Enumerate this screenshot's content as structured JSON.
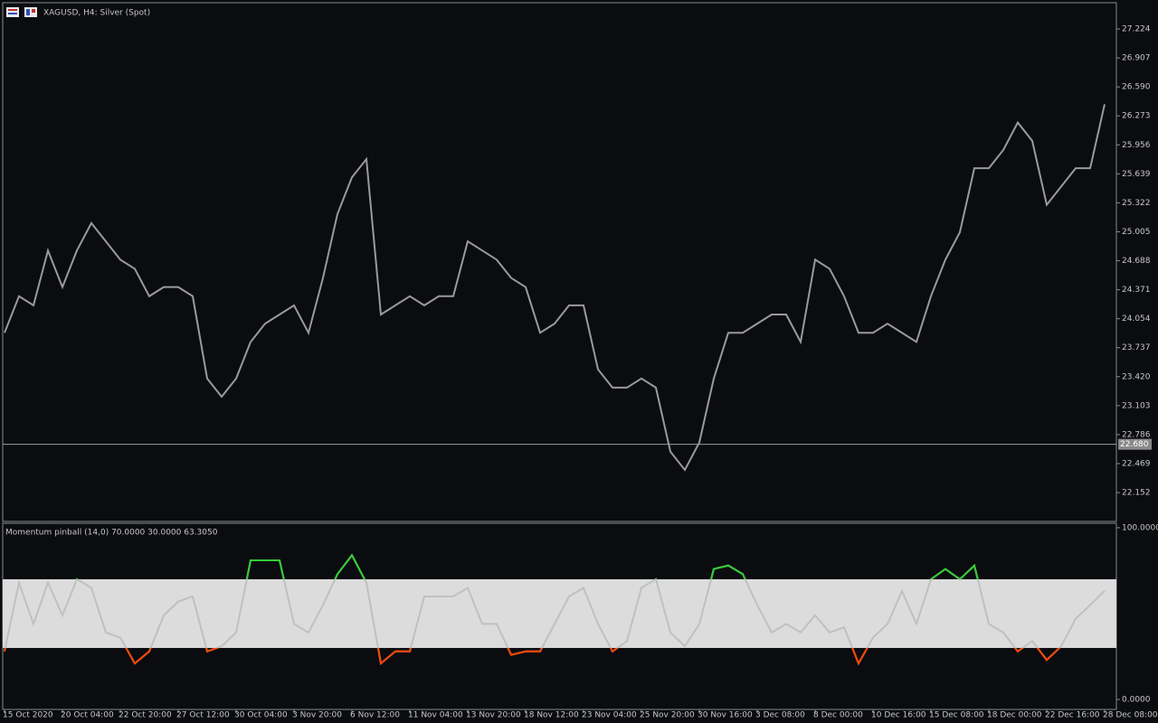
{
  "chart_data": [
    {
      "type": "line",
      "title": "XAGUSD, H4:  Silver (Spot)",
      "categories": [
        "15 Oct 2020",
        null,
        null,
        null,
        "20 Oct 04:00",
        null,
        null,
        null,
        "22 Oct 20:00",
        null,
        null,
        null,
        "27 Oct 12:00",
        null,
        null,
        null,
        "30 Oct 04:00",
        null,
        null,
        null,
        "3 Nov 20:00",
        null,
        null,
        null,
        "6 Nov 12:00",
        null,
        null,
        null,
        "11 Nov 04:00",
        null,
        null,
        null,
        "13 Nov 20:00",
        null,
        null,
        null,
        "18 Nov 12:00",
        null,
        null,
        null,
        "23 Nov 04:00",
        null,
        null,
        null,
        "25 Nov 20:00",
        null,
        null,
        null,
        "30 Nov 16:00",
        null,
        null,
        null,
        "3 Dec 08:00",
        null,
        null,
        null,
        "8 Dec 00:00",
        null,
        null,
        null,
        "10 Dec 16:00",
        null,
        null,
        null,
        "15 Dec 08:00",
        null,
        null,
        null,
        "18 Dec 00:00",
        null,
        null,
        null,
        "22 Dec 16:00",
        null,
        null,
        null,
        "28 Dec 08:00"
      ],
      "values": [
        23.9,
        24.3,
        24.2,
        24.8,
        24.4,
        24.8,
        25.1,
        24.9,
        24.7,
        24.6,
        24.3,
        24.4,
        24.4,
        24.3,
        23.4,
        23.2,
        23.4,
        23.8,
        24.0,
        24.1,
        24.2,
        23.9,
        24.5,
        25.2,
        25.6,
        25.8,
        24.1,
        24.2,
        24.3,
        24.2,
        24.3,
        24.3,
        24.9,
        24.8,
        24.7,
        24.5,
        24.4,
        23.9,
        24.0,
        24.2,
        24.2,
        23.5,
        23.3,
        23.3,
        23.4,
        23.3,
        22.6,
        22.4,
        22.7,
        23.4,
        23.9,
        23.9,
        24.0,
        24.1,
        24.1,
        23.8,
        24.7,
        24.6,
        24.3,
        23.9,
        23.9,
        24.0,
        23.9,
        23.8,
        24.3,
        24.7,
        25.0,
        25.7,
        25.7,
        25.9,
        26.2,
        26.0,
        25.3,
        25.5,
        25.7,
        25.7,
        26.4
      ],
      "color": "#9a9a9a",
      "ylim": [
        21.836,
        27.511
      ],
      "yticks": [
        22.152,
        22.469,
        22.786,
        23.103,
        {
          "value": 23.42,
          "label": "23.420"
        },
        23.737,
        24.054,
        24.371,
        24.688,
        25.005,
        25.322,
        25.639,
        25.956,
        26.273,
        {
          "value": 26.59,
          "label": "26.590"
        },
        26.907,
        27.224
      ],
      "current_price": {
        "value": 22.68,
        "label": "22.680"
      }
    },
    {
      "type": "line",
      "title": "Momentum pinball (14,0) 70.0000 30.0000 63.3050",
      "values": [
        28,
        68,
        44,
        68,
        49,
        70,
        65,
        39,
        36,
        21,
        28,
        49,
        57,
        60,
        28,
        31,
        39,
        81,
        81,
        81,
        44,
        39,
        55,
        73,
        84,
        68,
        21,
        28,
        28,
        60,
        60,
        60,
        65,
        44,
        44,
        26,
        28,
        28,
        44,
        60,
        65,
        44,
        28,
        34,
        65,
        70,
        39,
        31,
        44,
        76,
        78,
        73,
        55,
        39,
        44,
        39,
        49,
        39,
        42,
        21,
        36,
        44,
        63,
        44,
        70,
        76,
        70,
        78,
        44,
        39,
        28,
        34,
        23,
        31,
        47,
        55,
        63.305
      ],
      "color": "#c0c0c0",
      "upper_level": 70,
      "lower_level": 30,
      "upper_color": "#32cd32",
      "lower_color": "#ff4500",
      "band_color": "#dcdcdc",
      "ylim": [
        -5.8,
        102.6
      ],
      "yticks": [
        {
          "value": 100,
          "label": "100.0000"
        },
        {
          "value": 0,
          "label": "0.0000"
        }
      ]
    }
  ]
}
